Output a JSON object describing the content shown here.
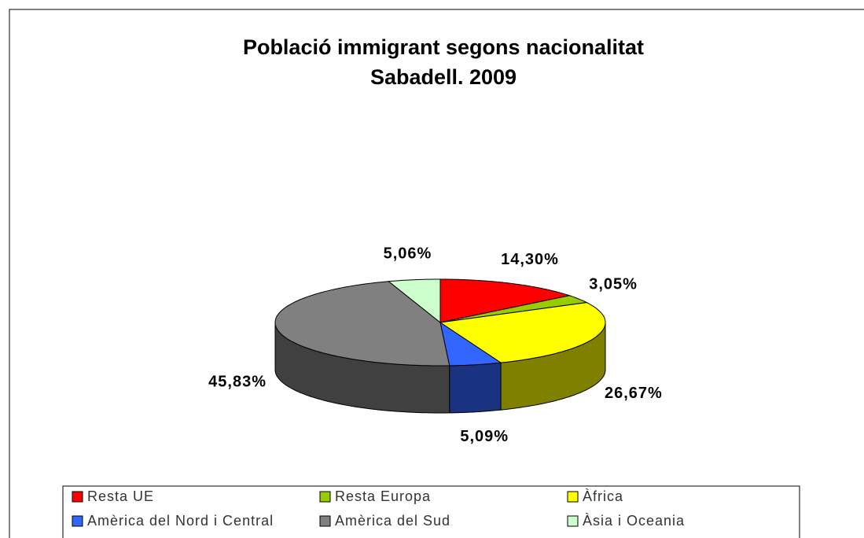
{
  "chart_data": {
    "type": "pie3d",
    "title": "Població immigrant segons nacionalitat",
    "subtitle": "Sabadell. 2009",
    "categories": [
      "Resta UE",
      "Resta Europa",
      "Àfrica",
      "Amèrica del Nord i Central",
      "Amèrica del Sud",
      "Àsia i Oceania"
    ],
    "values": [
      14.3,
      3.05,
      26.67,
      5.09,
      45.83,
      5.06
    ],
    "value_labels": [
      "14,30%",
      "3,05%",
      "26,67%",
      "5,09%",
      "45,83%",
      "5,06%"
    ],
    "colors": [
      "#ff0000",
      "#99cc00",
      "#ffff00",
      "#3366ff",
      "#808080",
      "#ccffcc"
    ],
    "legend": "bottom"
  }
}
